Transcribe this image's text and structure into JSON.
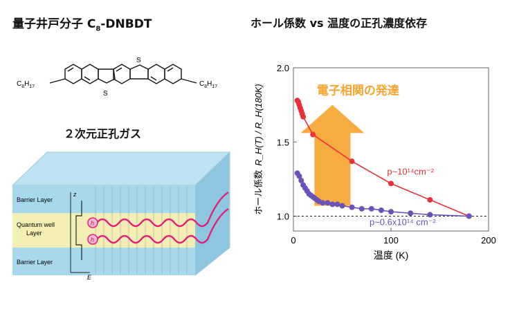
{
  "left_panel": {
    "molecule_title": "量子井戸分子 C",
    "molecule_title_sub": "8",
    "molecule_title_tail": "-DNBDT",
    "substituent_left": "C",
    "substituent_left_sub": "8",
    "substituent_left_tail": "H",
    "substituent_left_sub2": "17",
    "substituent_right": "C",
    "substituent_right_sub": "8",
    "substituent_right_tail": "H",
    "substituent_right_sub2": "17",
    "atom_s": "S",
    "gas_title": "２次元正孔ガス",
    "layers": {
      "barrier_top": "Barrier Layer",
      "quantum_well_1": "Quantum well",
      "quantum_well_2": "Layer",
      "barrier_bottom": "Barrier Layer"
    },
    "axis_z": "z",
    "axis_e": "E",
    "hole_label": "h"
  },
  "chart_data": {
    "type": "scatter",
    "title": "ホール係数 vs 温度の正孔濃度依存",
    "xlabel": "温度 (K)",
    "ylabel_prefix": "ホール係数",
    "ylabel_formula": "R_H(T) / R_H(180K)",
    "xlim": [
      0,
      200
    ],
    "ylim": [
      0.9,
      2.0
    ],
    "xticks": [
      "0",
      "100",
      "200"
    ],
    "yticks": [
      "1.0",
      "1.5",
      "2.0"
    ],
    "reference_line": 1.0,
    "annotation": "電子相関の発達",
    "series": [
      {
        "name": "p~10¹⁴cm⁻²",
        "color": "#e8303a",
        "style": "line-markers",
        "points": [
          [
            4,
            1.78
          ],
          [
            5,
            1.77
          ],
          [
            6,
            1.75
          ],
          [
            7,
            1.73
          ],
          [
            8,
            1.71
          ],
          [
            9,
            1.69
          ],
          [
            10,
            1.67
          ],
          [
            20,
            1.55
          ],
          [
            60,
            1.37
          ],
          [
            100,
            1.22
          ],
          [
            140,
            1.11
          ],
          [
            180,
            1.0
          ]
        ]
      },
      {
        "name": "p~0.6x10¹⁴ cm⁻²",
        "color": "#6a52b8",
        "style": "line-markers",
        "points": [
          [
            4,
            1.29
          ],
          [
            6,
            1.27
          ],
          [
            8,
            1.24
          ],
          [
            10,
            1.21
          ],
          [
            12,
            1.19
          ],
          [
            14,
            1.17
          ],
          [
            16,
            1.15
          ],
          [
            18,
            1.14
          ],
          [
            20,
            1.13
          ],
          [
            22,
            1.12
          ],
          [
            24,
            1.11
          ],
          [
            26,
            1.1
          ],
          [
            30,
            1.09
          ],
          [
            35,
            1.09
          ],
          [
            40,
            1.08
          ],
          [
            45,
            1.08
          ],
          [
            50,
            1.07
          ],
          [
            60,
            1.06
          ],
          [
            70,
            1.05
          ],
          [
            80,
            1.05
          ],
          [
            90,
            1.04
          ],
          [
            100,
            1.03
          ],
          [
            120,
            1.02
          ],
          [
            140,
            1.01
          ],
          [
            180,
            1.0
          ]
        ]
      }
    ]
  },
  "colors": {
    "accent_orange": "#f5a530",
    "wave_pink": "#e0207a",
    "barrier_blue": "#a8d8ec",
    "well_yellow": "#f3efb4"
  }
}
